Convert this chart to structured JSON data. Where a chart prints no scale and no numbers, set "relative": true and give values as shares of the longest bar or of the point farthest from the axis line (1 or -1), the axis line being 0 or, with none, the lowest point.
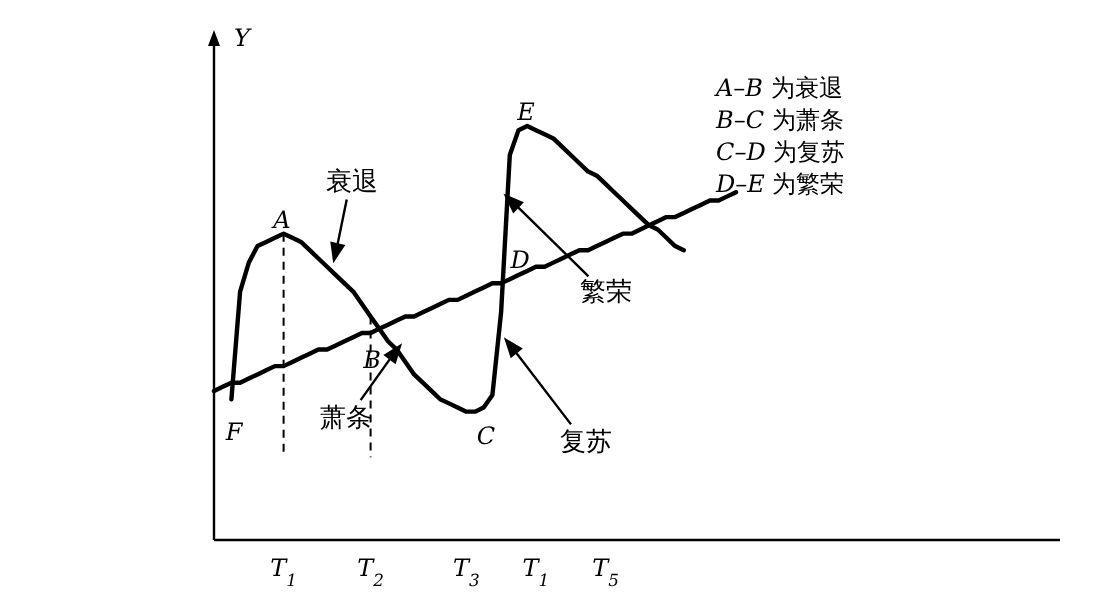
{
  "chart_data": {
    "type": "line",
    "relative": true,
    "ylabel": "Y",
    "categories": [
      null,
      null,
      null,
      null,
      null,
      null,
      null,
      null,
      "T$_{1}$",
      null,
      null,
      null,
      null,
      null,
      null,
      null,
      null,
      null,
      "T$_{2}$",
      null,
      null,
      null,
      null,
      null,
      null,
      null,
      null,
      null,
      null,
      "T$_{3}$",
      null,
      null,
      null,
      null,
      null,
      null,
      null,
      "T$_{1}$",
      null,
      null,
      null,
      null,
      null,
      null,
      null,
      "T$_{5}$",
      null,
      null,
      null,
      null,
      null,
      null,
      null,
      null,
      null,
      null,
      null,
      null,
      null,
      null,
      null
    ],
    "series": [
      {
        "color": "#000000",
        "values": [
          null,
          null,
          0.34,
          0.6,
          0.67,
          0.71,
          0.72,
          0.73,
          0.74,
          0.73,
          0.72,
          0.7,
          0.68,
          0.66,
          0.64,
          0.62,
          0.6,
          0.57,
          0.54,
          0.51,
          0.48,
          0.46,
          0.43,
          0.4,
          0.38,
          0.36,
          0.34,
          0.33,
          0.32,
          0.31,
          0.31,
          0.32,
          0.35,
          0.55,
          0.93,
          0.99,
          1.0,
          0.99,
          0.98,
          0.97,
          0.95,
          0.93,
          0.91,
          0.89,
          0.88,
          0.86,
          0.84,
          0.82,
          0.8,
          0.78,
          0.76,
          0.75,
          0.73,
          0.71,
          0.7,
          null,
          null,
          null,
          null,
          null,
          null
        ]
      },
      {
        "color": "#000000",
        "values": [
          0.36,
          0.37,
          0.38,
          0.38,
          0.39,
          0.4,
          0.41,
          0.42,
          0.42,
          0.43,
          0.44,
          0.45,
          0.46,
          0.46,
          0.47,
          0.48,
          0.49,
          0.5,
          0.5,
          0.51,
          0.52,
          0.53,
          0.54,
          0.54,
          0.55,
          0.56,
          0.57,
          0.58,
          0.58,
          0.59,
          0.6,
          0.61,
          0.62,
          0.62,
          0.63,
          0.64,
          0.65,
          0.66,
          0.66,
          0.67,
          0.68,
          0.69,
          0.7,
          0.7,
          0.71,
          0.72,
          0.73,
          0.74,
          0.74,
          0.75,
          0.76,
          0.77,
          0.78,
          0.78,
          0.79,
          0.8,
          0.81,
          0.82,
          0.82,
          0.83,
          0.84
        ]
      }
    ],
    "ref_lines": [
      {
        "axis": "x",
        "value": "T$_{1}$",
        "line_style": "dashed"
      },
      {
        "axis": "x",
        "value": "T$_{2}$",
        "line_style": "dashed"
      }
    ],
    "annotations": [
      "A",
      "B",
      "C",
      "D",
      "E",
      "F",
      "衰退",
      "萧条",
      "繁荣",
      "复苏",
      "*A*–*B* 为衰退",
      "*B*–*C* 为萧条",
      "*C*–*D* 为复苏",
      "*D*–*E* 为繁荣"
    ]
  }
}
